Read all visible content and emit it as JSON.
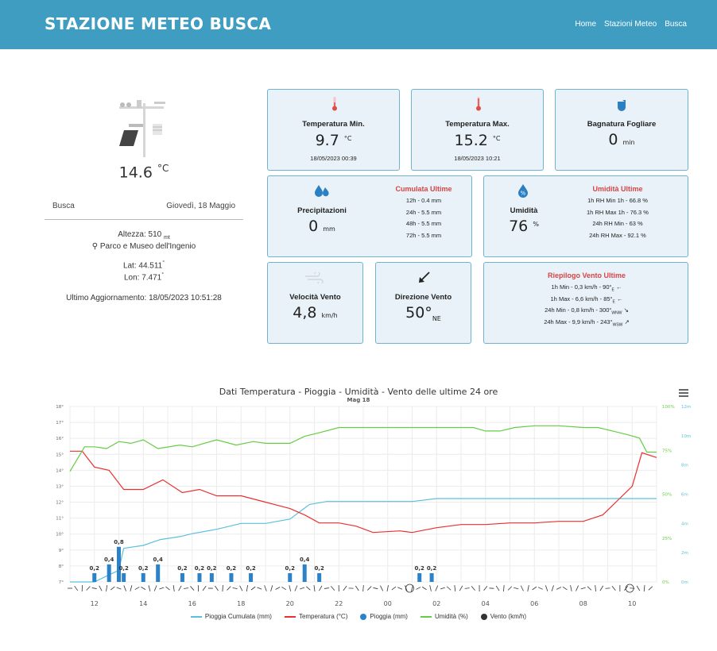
{
  "header": {
    "title": "STAZIONE METEO BUSCA",
    "nav": [
      "Home",
      "Stazioni Meteo",
      "Busca"
    ]
  },
  "station": {
    "current_temp": "14.6",
    "current_temp_unit": "°C",
    "location": "Busca",
    "date": "Giovedì, 18 Maggio",
    "altitude_label": "Altezza: 510",
    "altitude_unit": "mt",
    "place": "Parco e Museo dell'Ingenio",
    "lat": "Lat: 44.511",
    "lon": "Lon: 7.471",
    "degree": "°",
    "last_update": "Ultimo Aggiornamento: 18/05/2023 10:51:28"
  },
  "cards": {
    "tmin": {
      "label": "Temperatura Min.",
      "value": "9.7",
      "unit": "°C",
      "time": "18/05/2023 00:39"
    },
    "tmax": {
      "label": "Temperatura Max.",
      "value": "15.2",
      "unit": "°C",
      "time": "18/05/2023 10:21"
    },
    "leaf": {
      "label": "Bagnatura Fogliare",
      "value": "0",
      "unit": "min"
    },
    "rain": {
      "label": "Precipitazioni",
      "value": "0",
      "unit": "mm",
      "sub_title": "Cumulata Ultime",
      "rows": [
        "12h - 0.4 mm",
        "24h - 5.5 mm",
        "48h - 5.5 mm",
        "72h - 5.5 mm"
      ]
    },
    "hum": {
      "label": "Umidità",
      "value": "76",
      "unit": "%",
      "sub_title": "Umidità Ultime",
      "rows": [
        "1h RH Min 1h - 66.8 %",
        "1h RH Max 1h - 76.3 %",
        "24h RH Min - 63 %",
        "24h RH Max - 92.1 %"
      ]
    },
    "wind_speed": {
      "label": "Velocità Vento",
      "value": "4,8",
      "unit": "km/h"
    },
    "wind_dir": {
      "label": "Direzione Vento",
      "value": "50°",
      "unit": "NE"
    },
    "wind_summary": {
      "title": "Riepilogo Vento Ultime",
      "rows": [
        {
          "text": "1h Min - 0,3 km/h - 90°",
          "dir": "E",
          "arrow": "←"
        },
        {
          "text": "1h Max - 6,6 km/h - 85°",
          "dir": "E",
          "arrow": "←"
        },
        {
          "text": "24h Min - 0,8 km/h - 300°",
          "dir": "WNW",
          "arrow": "↘"
        },
        {
          "text": "24h Max - 9,9 km/h - 243°",
          "dir": "WSW",
          "arrow": "↗"
        }
      ]
    }
  },
  "chart_data": {
    "type": "line",
    "title": "Dati Temperatura - Pioggia - Umidità - Vento delle ultime 24 ore",
    "subtitle": "Mag 18",
    "x_ticks": [
      "12",
      "14",
      "16",
      "18",
      "20",
      "22",
      "00",
      "02",
      "04",
      "06",
      "08",
      "10"
    ],
    "x_range_hours": [
      11,
      35
    ],
    "y_left_ticks": [
      "7°",
      "8°",
      "9°",
      "10°",
      "11°",
      "12°",
      "13°",
      "14°",
      "15°",
      "16°",
      "17°",
      "18°"
    ],
    "y_humidity_ticks": [
      "0%",
      "25%",
      "50%",
      "75%",
      "100%"
    ],
    "y_wind_ticks": [
      "0m",
      "2m",
      "4m",
      "6m",
      "8m",
      "10m",
      "12m"
    ],
    "series": [
      {
        "name": "Pioggia Cumulata (mm)",
        "color": "#5bc0de",
        "axis": "rain",
        "points": [
          [
            11,
            0
          ],
          [
            12,
            0
          ],
          [
            12.5,
            0.4
          ],
          [
            13,
            0.8
          ],
          [
            13.2,
            2.3
          ],
          [
            14,
            2.5
          ],
          [
            14.7,
            2.9
          ],
          [
            15.5,
            3.1
          ],
          [
            16,
            3.3
          ],
          [
            17,
            3.6
          ],
          [
            18,
            4.0
          ],
          [
            19,
            4.0
          ],
          [
            20,
            4.3
          ],
          [
            20.8,
            5.3
          ],
          [
            21.5,
            5.5
          ],
          [
            25,
            5.5
          ],
          [
            26,
            5.7
          ],
          [
            35,
            5.7
          ]
        ]
      },
      {
        "name": "Temperatura (°C)",
        "color": "#e8312f",
        "axis": "temp",
        "points": [
          [
            11,
            15.2
          ],
          [
            11.5,
            15.2
          ],
          [
            12,
            14.2
          ],
          [
            12.6,
            14.0
          ],
          [
            13.2,
            12.8
          ],
          [
            14,
            12.8
          ],
          [
            14.8,
            13.4
          ],
          [
            15.6,
            12.6
          ],
          [
            16.3,
            12.8
          ],
          [
            17,
            12.4
          ],
          [
            18,
            12.4
          ],
          [
            19,
            12.0
          ],
          [
            20,
            11.6
          ],
          [
            20.6,
            11.2
          ],
          [
            21.2,
            10.7
          ],
          [
            22,
            10.7
          ],
          [
            22.7,
            10.5
          ],
          [
            23.4,
            10.1
          ],
          [
            24.5,
            10.2
          ],
          [
            25,
            10.1
          ],
          [
            26,
            10.4
          ],
          [
            27,
            10.6
          ],
          [
            28,
            10.6
          ],
          [
            29,
            10.7
          ],
          [
            30,
            10.7
          ],
          [
            31,
            10.8
          ],
          [
            32,
            10.8
          ],
          [
            32.8,
            11.2
          ],
          [
            33.4,
            12.1
          ],
          [
            34,
            13.0
          ],
          [
            34.4,
            15.1
          ],
          [
            35,
            14.8
          ]
        ]
      },
      {
        "name": "Umidità (%)",
        "color": "#66cc44",
        "axis": "humidity",
        "points": [
          [
            11,
            63
          ],
          [
            11.6,
            77
          ],
          [
            12,
            77
          ],
          [
            12.5,
            76
          ],
          [
            13,
            80
          ],
          [
            13.5,
            79
          ],
          [
            14,
            81
          ],
          [
            14.6,
            76
          ],
          [
            15.5,
            78
          ],
          [
            16,
            77
          ],
          [
            17,
            81
          ],
          [
            17.8,
            78
          ],
          [
            18.5,
            80
          ],
          [
            19,
            79
          ],
          [
            20,
            79
          ],
          [
            20.6,
            83
          ],
          [
            21.2,
            85
          ],
          [
            22,
            88
          ],
          [
            23,
            88
          ],
          [
            24,
            88
          ],
          [
            24.8,
            88
          ],
          [
            25.5,
            88
          ],
          [
            26.5,
            88
          ],
          [
            27.5,
            88
          ],
          [
            28,
            86
          ],
          [
            28.6,
            86
          ],
          [
            29.2,
            88
          ],
          [
            30,
            89
          ],
          [
            31,
            89
          ],
          [
            32,
            88
          ],
          [
            32.6,
            88
          ],
          [
            33.2,
            86
          ],
          [
            33.8,
            84
          ],
          [
            34.3,
            82
          ],
          [
            34.6,
            74
          ],
          [
            35,
            74
          ]
        ]
      },
      {
        "name": "Pioggia (mm)",
        "color": "#2b82c9",
        "axis": "rain",
        "type": "bar",
        "x": [
          12,
          12.6,
          13,
          13.2,
          14,
          14.6,
          15.6,
          16.3,
          16.8,
          17.6,
          18.4,
          20,
          20.6,
          21.2,
          25.3,
          25.8
        ],
        "values": [
          0.2,
          0.4,
          0.8,
          0.2,
          0.2,
          0.4,
          0.2,
          0.2,
          0.2,
          0.2,
          0.2,
          0.2,
          0.4,
          0.2,
          0.2,
          0.2
        ]
      },
      {
        "name": "Vento (km/h)",
        "color": "#333333",
        "type": "wind-barbs"
      }
    ],
    "ylim_temp": [
      7,
      18
    ],
    "ylim_humidity": [
      0,
      100
    ],
    "ylim_rain": [
      0,
      12
    ],
    "grid": true,
    "legend": "bottom"
  }
}
